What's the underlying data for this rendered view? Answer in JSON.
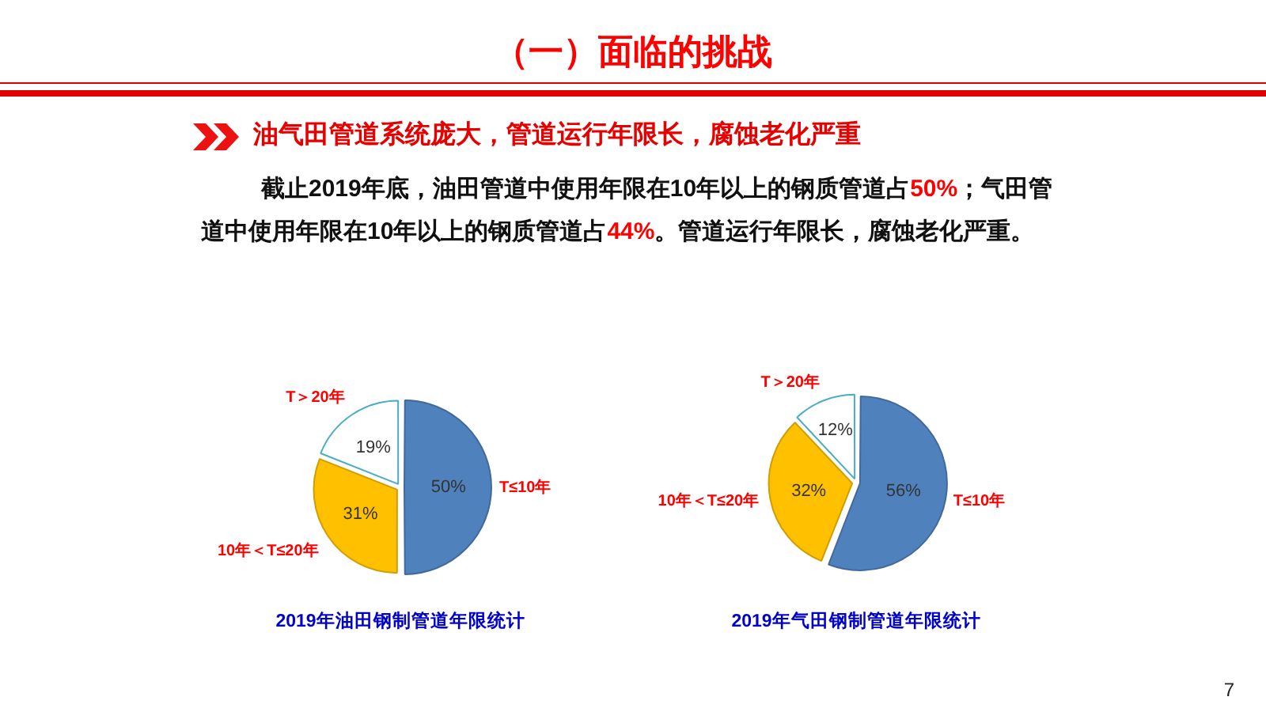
{
  "chart_data": [
    {
      "type": "pie",
      "title": "2019年油田钢制管道年限统计",
      "categories": [
        "T≤10年",
        "10年＜T≤20年",
        "T＞20年"
      ],
      "values": [
        50,
        31,
        19
      ],
      "colors": [
        "#4f81bd",
        "#ffc000",
        "#ffffff"
      ],
      "value_labels": [
        "50%",
        "31%",
        "19%"
      ],
      "annotations": [
        "（一）面临的挑战",
        "油气田管道系统庞大，管道运行年限长，腐蚀老化严重",
        "截止2019年底，油田管道中使用年限在10年以上的钢质管道占50%；气田管道中使用年限在10年以上的钢质管道占44%。管道运行年限长，腐蚀老化严重。",
        "7"
      ]
    },
    {
      "type": "pie",
      "title": "2019年气田钢制管道年限统计",
      "categories": [
        "T≤10年",
        "10年＜T≤20年",
        "T＞20年"
      ],
      "values": [
        56,
        32,
        12
      ],
      "colors": [
        "#4f81bd",
        "#ffc000",
        "#ffffff"
      ],
      "value_labels": [
        "56%",
        "32%",
        "12%"
      ]
    }
  ]
}
